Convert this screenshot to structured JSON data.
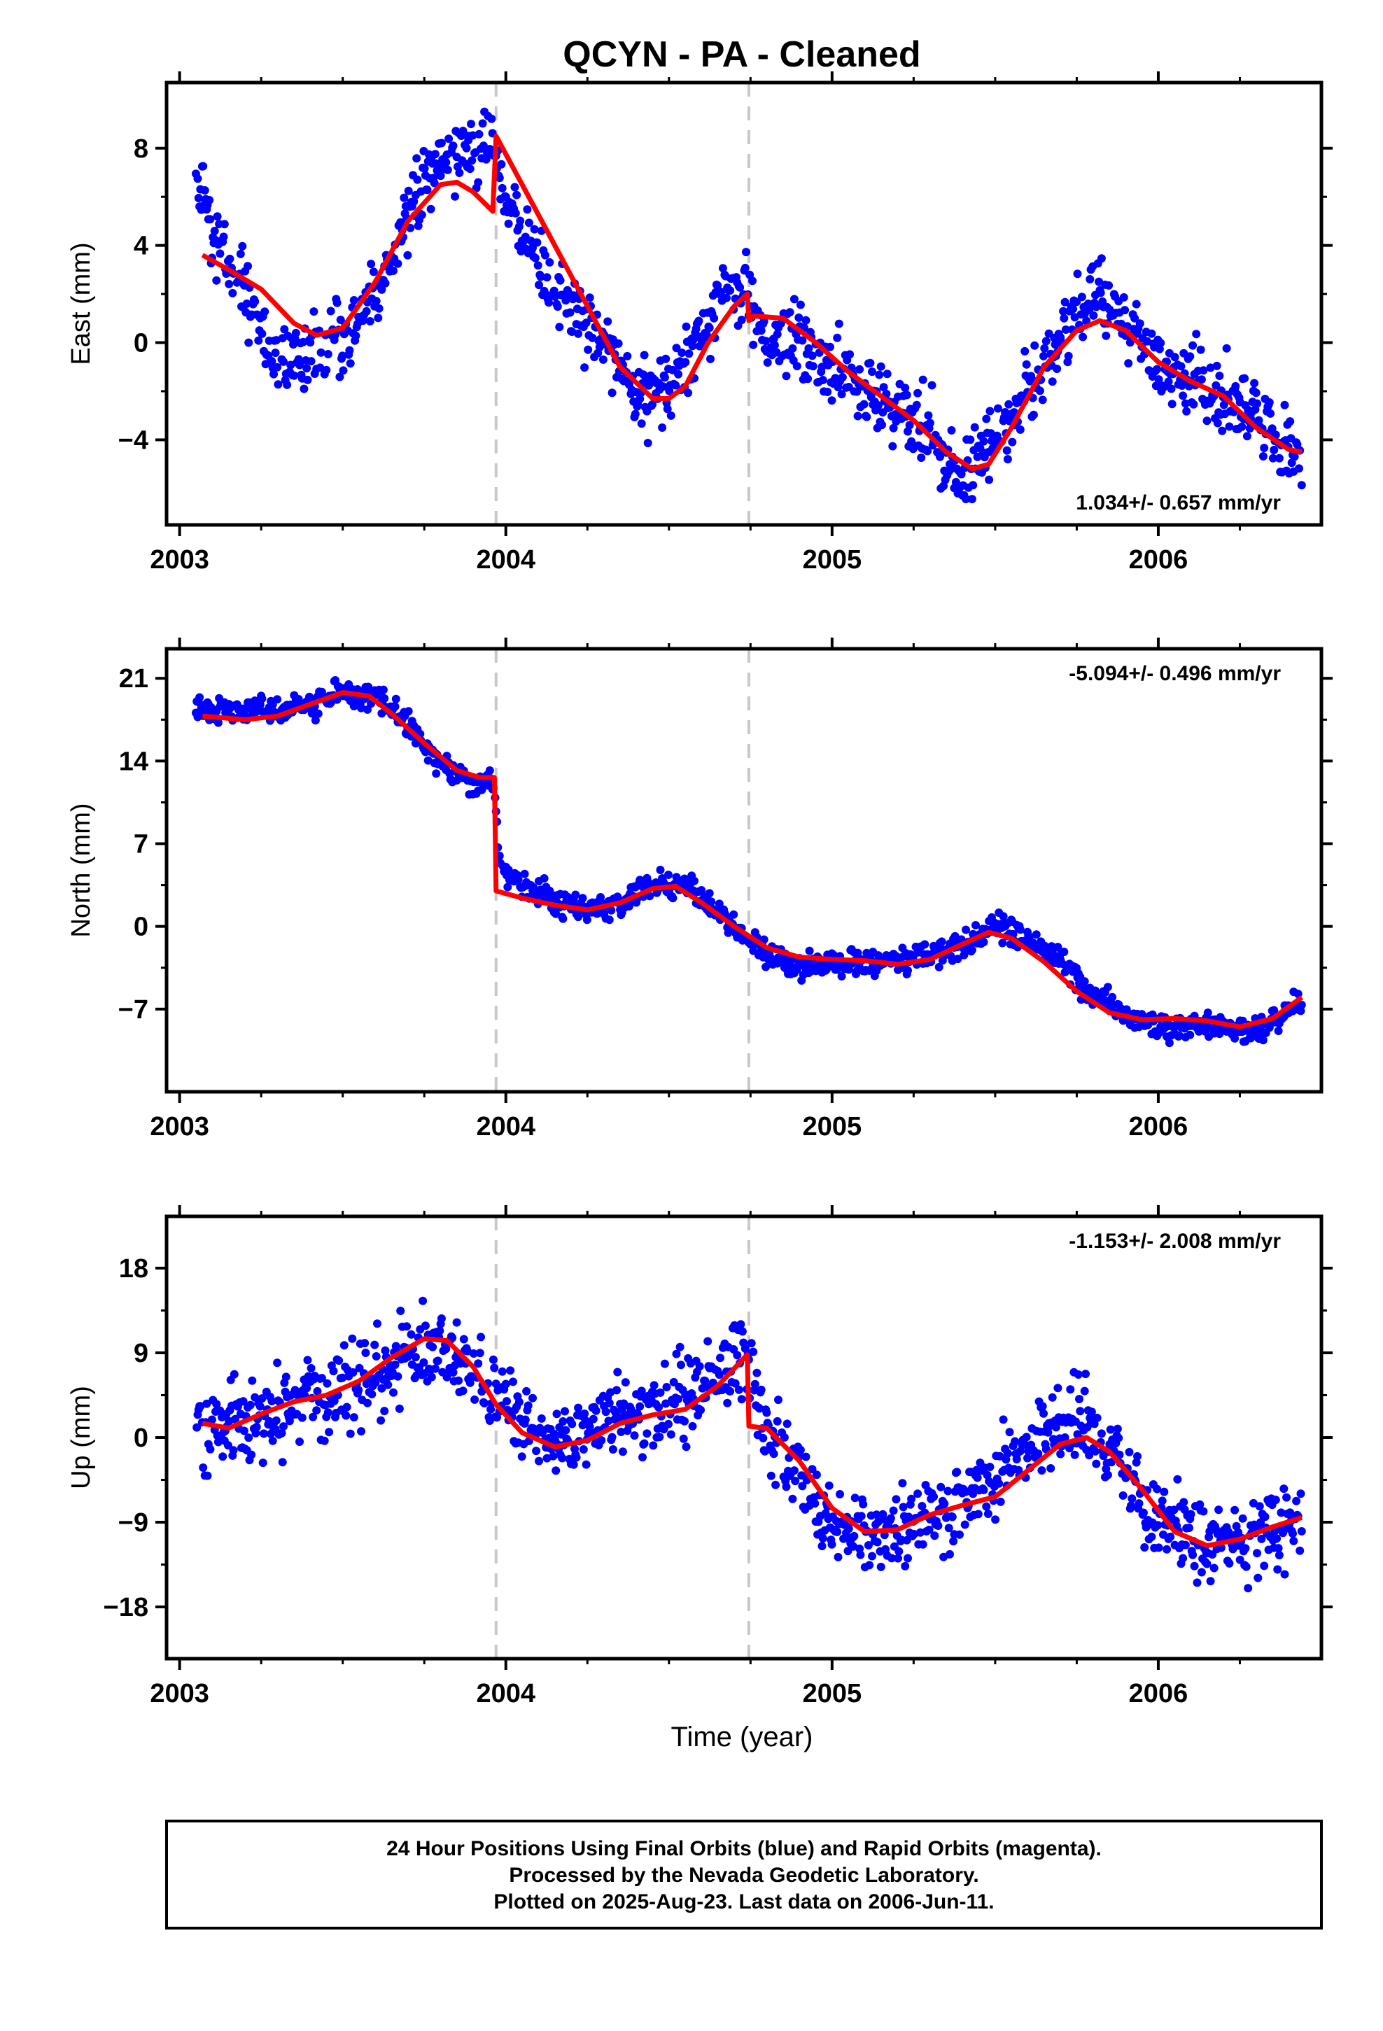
{
  "title": "QCYN  - PA - Cleaned",
  "xlabel": "Time (year)",
  "xticks": [
    "2003",
    "2004",
    "2005",
    "2006"
  ],
  "colors": {
    "points": "#0000ff",
    "model": "#ff0000",
    "breaks": "#c8c8c8",
    "frame": "#000000"
  },
  "footer": [
    "24 Hour Positions Using Final Orbits (blue) and Rapid Orbits (magenta).",
    "Processed by the Nevada Geodetic Laboratory.",
    "Plotted on 2025-Aug-23. Last data on 2006-Jun-11."
  ],
  "chart_data": [
    {
      "type": "scatter",
      "ylabel": "East (mm)",
      "rate": "1.034+/- 0.657 mm/yr",
      "rate_position": "bottom-right",
      "xlim": [
        2002.96,
        2006.5
      ],
      "ylim": [
        -7.5,
        10.7
      ],
      "yticks": [
        8,
        4,
        0,
        -4
      ],
      "ytick_labels": [
        "8",
        "4",
        "0",
        "−4"
      ],
      "xticks": [
        2003,
        2004,
        2005,
        2006
      ],
      "breaks": [
        2003.97,
        2004.745
      ],
      "series": [
        {
          "kind": "points",
          "amp": 2.2,
          "seed": 11,
          "anchors": [
            [
              2003.05,
              7.5
            ],
            [
              2003.1,
              4.5
            ],
            [
              2003.2,
              2.0
            ],
            [
              2003.3,
              -1.0
            ],
            [
              2003.4,
              -0.5
            ],
            [
              2003.5,
              0.3
            ],
            [
              2003.6,
              2.0
            ],
            [
              2003.7,
              5.5
            ],
            [
              2003.8,
              7.5
            ],
            [
              2003.9,
              8.0
            ],
            [
              2003.96,
              8.0
            ],
            [
              2004.0,
              6.0
            ],
            [
              2004.1,
              3.5
            ],
            [
              2004.2,
              1.5
            ],
            [
              2004.3,
              0.0
            ],
            [
              2004.4,
              -2.5
            ],
            [
              2004.5,
              -2.0
            ],
            [
              2004.6,
              0.5
            ],
            [
              2004.7,
              2.0
            ],
            [
              2004.74,
              2.5
            ],
            [
              2004.8,
              0.0
            ],
            [
              2004.9,
              0.0
            ],
            [
              2005.0,
              -1.0
            ],
            [
              2005.1,
              -2.0
            ],
            [
              2005.2,
              -3.0
            ],
            [
              2005.3,
              -4.0
            ],
            [
              2005.4,
              -5.5
            ],
            [
              2005.5,
              -4.0
            ],
            [
              2005.6,
              -2.0
            ],
            [
              2005.7,
              0.0
            ],
            [
              2005.8,
              2.0
            ],
            [
              2005.9,
              1.0
            ],
            [
              2006.0,
              -1.0
            ],
            [
              2006.1,
              -1.5
            ],
            [
              2006.2,
              -2.0
            ],
            [
              2006.3,
              -3.0
            ],
            [
              2006.4,
              -4.5
            ],
            [
              2006.44,
              -4.5
            ]
          ]
        },
        {
          "kind": "model",
          "points": [
            [
              2003.07,
              3.6
            ],
            [
              2003.15,
              3.0
            ],
            [
              2003.25,
              2.2
            ],
            [
              2003.35,
              0.8
            ],
            [
              2003.42,
              0.3
            ],
            [
              2003.5,
              0.6
            ],
            [
              2003.6,
              2.5
            ],
            [
              2003.7,
              5.0
            ],
            [
              2003.8,
              6.5
            ],
            [
              2003.85,
              6.6
            ],
            [
              2003.9,
              6.2
            ],
            [
              2003.96,
              5.4
            ],
            [
              2003.97,
              8.5
            ],
            [
              2004.05,
              6.5
            ],
            [
              2004.15,
              4.0
            ],
            [
              2004.25,
              1.5
            ],
            [
              2004.35,
              -1.0
            ],
            [
              2004.45,
              -2.3
            ],
            [
              2004.5,
              -2.3
            ],
            [
              2004.55,
              -1.8
            ],
            [
              2004.62,
              0.0
            ],
            [
              2004.7,
              1.5
            ],
            [
              2004.74,
              2.0
            ],
            [
              2004.745,
              0.9
            ],
            [
              2004.76,
              1.1
            ],
            [
              2004.85,
              1.0
            ],
            [
              2004.95,
              0.0
            ],
            [
              2005.05,
              -1.2
            ],
            [
              2005.15,
              -2.2
            ],
            [
              2005.25,
              -3.2
            ],
            [
              2005.35,
              -4.5
            ],
            [
              2005.43,
              -5.2
            ],
            [
              2005.48,
              -5.0
            ],
            [
              2005.55,
              -3.5
            ],
            [
              2005.65,
              -1.0
            ],
            [
              2005.75,
              0.5
            ],
            [
              2005.82,
              0.9
            ],
            [
              2005.9,
              0.5
            ],
            [
              2006.0,
              -0.8
            ],
            [
              2006.1,
              -1.6
            ],
            [
              2006.2,
              -2.2
            ],
            [
              2006.3,
              -3.5
            ],
            [
              2006.4,
              -4.4
            ],
            [
              2006.44,
              -4.5
            ]
          ]
        }
      ]
    },
    {
      "type": "scatter",
      "ylabel": "North (mm)",
      "rate": "-5.094+/- 0.496 mm/yr",
      "rate_position": "top-right",
      "xlim": [
        2002.96,
        2006.5
      ],
      "ylim": [
        -14.0,
        23.5
      ],
      "yticks": [
        21,
        14,
        7,
        0,
        -7
      ],
      "ytick_labels": [
        "21",
        "14",
        "7",
        "0",
        "−7"
      ],
      "xticks": [
        2003,
        2004,
        2005,
        2006
      ],
      "breaks": [
        2003.97,
        2004.745
      ],
      "series": [
        {
          "kind": "points",
          "amp": 1.7,
          "seed": 23,
          "anchors": [
            [
              2003.05,
              18.5
            ],
            [
              2003.2,
              18.0
            ],
            [
              2003.35,
              18.5
            ],
            [
              2003.5,
              19.5
            ],
            [
              2003.6,
              19.5
            ],
            [
              2003.7,
              17.0
            ],
            [
              2003.8,
              14.0
            ],
            [
              2003.9,
              12.0
            ],
            [
              2003.96,
              12.5
            ],
            [
              2003.98,
              5.5
            ],
            [
              2004.05,
              3.5
            ],
            [
              2004.15,
              2.0
            ],
            [
              2004.25,
              1.5
            ],
            [
              2004.35,
              2.0
            ],
            [
              2004.45,
              3.5
            ],
            [
              2004.55,
              3.5
            ],
            [
              2004.65,
              1.0
            ],
            [
              2004.74,
              -1.0
            ],
            [
              2004.8,
              -2.5
            ],
            [
              2004.9,
              -3.5
            ],
            [
              2005.0,
              -3.0
            ],
            [
              2005.1,
              -3.0
            ],
            [
              2005.2,
              -3.0
            ],
            [
              2005.3,
              -2.5
            ],
            [
              2005.4,
              -1.5
            ],
            [
              2005.5,
              0.0
            ],
            [
              2005.6,
              -1.0
            ],
            [
              2005.7,
              -3.0
            ],
            [
              2005.8,
              -6.0
            ],
            [
              2005.9,
              -7.5
            ],
            [
              2006.0,
              -8.5
            ],
            [
              2006.1,
              -8.5
            ],
            [
              2006.2,
              -8.5
            ],
            [
              2006.3,
              -9.0
            ],
            [
              2006.44,
              -6.5
            ]
          ]
        },
        {
          "kind": "model",
          "points": [
            [
              2003.07,
              17.8
            ],
            [
              2003.2,
              17.5
            ],
            [
              2003.3,
              17.8
            ],
            [
              2003.4,
              18.8
            ],
            [
              2003.5,
              19.8
            ],
            [
              2003.58,
              19.5
            ],
            [
              2003.65,
              18.0
            ],
            [
              2003.75,
              15.5
            ],
            [
              2003.85,
              13.2
            ],
            [
              2003.92,
              12.6
            ],
            [
              2003.965,
              12.6
            ],
            [
              2003.97,
              3.0
            ],
            [
              2004.05,
              2.4
            ],
            [
              2004.15,
              1.8
            ],
            [
              2004.25,
              1.4
            ],
            [
              2004.35,
              2.0
            ],
            [
              2004.45,
              3.2
            ],
            [
              2004.52,
              3.4
            ],
            [
              2004.6,
              2.0
            ],
            [
              2004.7,
              0.0
            ],
            [
              2004.8,
              -1.8
            ],
            [
              2004.9,
              -2.6
            ],
            [
              2005.0,
              -2.8
            ],
            [
              2005.1,
              -2.9
            ],
            [
              2005.2,
              -3.2
            ],
            [
              2005.3,
              -2.8
            ],
            [
              2005.4,
              -1.5
            ],
            [
              2005.48,
              -0.5
            ],
            [
              2005.55,
              -1.0
            ],
            [
              2005.65,
              -3.0
            ],
            [
              2005.75,
              -5.5
            ],
            [
              2005.85,
              -7.3
            ],
            [
              2005.95,
              -7.9
            ],
            [
              2006.05,
              -7.8
            ],
            [
              2006.15,
              -8.0
            ],
            [
              2006.25,
              -8.5
            ],
            [
              2006.35,
              -7.8
            ],
            [
              2006.44,
              -6.0
            ]
          ]
        }
      ]
    },
    {
      "type": "scatter",
      "ylabel": "Up (mm)",
      "rate": "-1.153+/- 2.008 mm/yr",
      "rate_position": "top-right",
      "xlim": [
        2002.96,
        2006.5
      ],
      "ylim": [
        -23.5,
        23.5
      ],
      "yticks": [
        18,
        9,
        0,
        -9,
        -18
      ],
      "ytick_labels": [
        "18",
        "9",
        "0",
        "−9",
        "−18"
      ],
      "xticks": [
        2003,
        2004,
        2005,
        2006
      ],
      "breaks": [
        2003.97,
        2004.745
      ],
      "series": [
        {
          "kind": "points",
          "amp": 6.5,
          "seed": 37,
          "anchors": [
            [
              2003.05,
              1.0
            ],
            [
              2003.2,
              1.5
            ],
            [
              2003.35,
              4.0
            ],
            [
              2003.5,
              5.0
            ],
            [
              2003.65,
              8.0
            ],
            [
              2003.8,
              10.0
            ],
            [
              2003.9,
              8.0
            ],
            [
              2003.97,
              4.0
            ],
            [
              2004.1,
              0.0
            ],
            [
              2004.2,
              0.0
            ],
            [
              2004.3,
              2.0
            ],
            [
              2004.45,
              3.0
            ],
            [
              2004.6,
              5.0
            ],
            [
              2004.74,
              9.0
            ],
            [
              2004.8,
              0.0
            ],
            [
              2004.9,
              -4.0
            ],
            [
              2005.0,
              -9.0
            ],
            [
              2005.1,
              -11.0
            ],
            [
              2005.2,
              -10.0
            ],
            [
              2005.35,
              -8.0
            ],
            [
              2005.5,
              -5.0
            ],
            [
              2005.6,
              -1.0
            ],
            [
              2005.7,
              2.0
            ],
            [
              2005.8,
              1.0
            ],
            [
              2005.9,
              -4.0
            ],
            [
              2006.0,
              -9.0
            ],
            [
              2006.15,
              -11.0
            ],
            [
              2006.3,
              -10.0
            ],
            [
              2006.44,
              -9.0
            ]
          ]
        },
        {
          "kind": "model",
          "points": [
            [
              2003.07,
              1.5
            ],
            [
              2003.15,
              1.0
            ],
            [
              2003.25,
              2.5
            ],
            [
              2003.35,
              3.8
            ],
            [
              2003.45,
              4.5
            ],
            [
              2003.55,
              6.0
            ],
            [
              2003.65,
              8.5
            ],
            [
              2003.75,
              10.5
            ],
            [
              2003.82,
              10.3
            ],
            [
              2003.9,
              7.5
            ],
            [
              2003.97,
              3.5
            ],
            [
              2004.05,
              0.5
            ],
            [
              2004.15,
              -1.0
            ],
            [
              2004.25,
              -0.3
            ],
            [
              2004.35,
              1.5
            ],
            [
              2004.45,
              2.4
            ],
            [
              2004.55,
              3.0
            ],
            [
              2004.65,
              5.5
            ],
            [
              2004.74,
              8.8
            ],
            [
              2004.745,
              1.2
            ],
            [
              2004.8,
              1.0
            ],
            [
              2004.9,
              -2.5
            ],
            [
              2005.0,
              -7.5
            ],
            [
              2005.1,
              -10.0
            ],
            [
              2005.2,
              -9.8
            ],
            [
              2005.3,
              -8.2
            ],
            [
              2005.4,
              -7.2
            ],
            [
              2005.5,
              -6.3
            ],
            [
              2005.6,
              -3.5
            ],
            [
              2005.7,
              -0.7
            ],
            [
              2005.78,
              0.0
            ],
            [
              2005.85,
              -1.5
            ],
            [
              2005.95,
              -5.5
            ],
            [
              2006.05,
              -10.0
            ],
            [
              2006.15,
              -11.5
            ],
            [
              2006.25,
              -10.8
            ],
            [
              2006.35,
              -9.5
            ],
            [
              2006.44,
              -8.5
            ]
          ]
        }
      ]
    }
  ]
}
